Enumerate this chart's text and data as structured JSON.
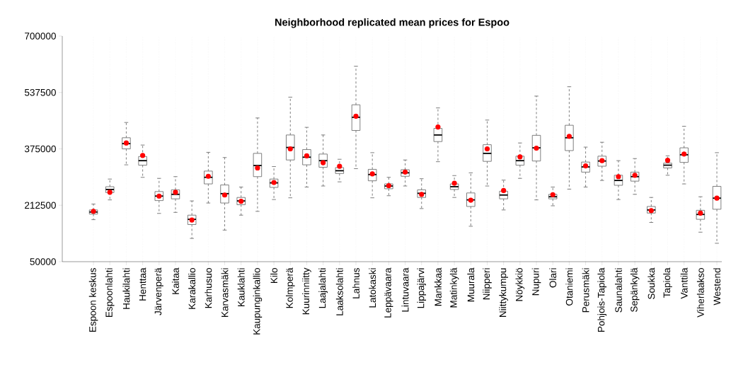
{
  "chart_data": {
    "type": "box",
    "title": "Neighborhood replicated mean prices for Espoo",
    "categories": [
      "Espoon keskus",
      "Espoonlahti",
      "Haukilahti",
      "Henttaa",
      "Järvenperä",
      "Kaitaa",
      "Karakallio",
      "Karhusuo",
      "Karvasmäki",
      "Kauklahti",
      "Kaupunginkallio",
      "Kilo",
      "Kolmperä",
      "Kuurinniitty",
      "Laajalahti",
      "Laaksolahti",
      "Lahnus",
      "Latokaski",
      "Leppävaara",
      "Lintuvaara",
      "Lippajärvi",
      "Mankkaa",
      "Matinkylä",
      "Muurala",
      "Niipperi",
      "Niittykumpu",
      "Nöykkiö",
      "Nupuri",
      "Olari",
      "Otaniemi",
      "Perusmäki",
      "Pohjois-Tapiola",
      "Saunalahti",
      "Sepänkylä",
      "Soukka",
      "Tapiola",
      "Vanttila",
      "Viherlaakso",
      "Westend"
    ],
    "boxes": [
      {
        "low": 171000,
        "q1": 187000,
        "median": 193000,
        "q3": 199000,
        "high": 216000,
        "mean": 195000
      },
      {
        "low": 228000,
        "q1": 249000,
        "median": 258000,
        "q3": 266000,
        "high": 288000,
        "mean": 250000
      },
      {
        "low": 329000,
        "q1": 375000,
        "median": 390000,
        "q3": 407000,
        "high": 451000,
        "mean": 392000
      },
      {
        "low": 293000,
        "q1": 328000,
        "median": 341000,
        "q3": 353000,
        "high": 386000,
        "mean": 356000
      },
      {
        "low": 189000,
        "q1": 226000,
        "median": 239000,
        "q3": 252000,
        "high": 290000,
        "mean": 239000
      },
      {
        "low": 192000,
        "q1": 231000,
        "median": 244000,
        "q3": 257000,
        "high": 295000,
        "mean": 250000
      },
      {
        "low": 117000,
        "q1": 157000,
        "median": 172000,
        "q3": 184000,
        "high": 225000,
        "mean": 170000
      },
      {
        "low": 219000,
        "q1": 274000,
        "median": 293000,
        "q3": 311000,
        "high": 365000,
        "mean": 296000
      },
      {
        "low": 141000,
        "q1": 219000,
        "median": 246000,
        "q3": 271000,
        "high": 350000,
        "mean": 242000
      },
      {
        "low": 184000,
        "q1": 214000,
        "median": 225000,
        "q3": 235000,
        "high": 265000,
        "mean": 224000
      },
      {
        "low": 195000,
        "q1": 295000,
        "median": 327000,
        "q3": 362000,
        "high": 464000,
        "mean": 320000
      },
      {
        "low": 229000,
        "q1": 264000,
        "median": 277000,
        "q3": 288000,
        "high": 324000,
        "mean": 278000
      },
      {
        "low": 234000,
        "q1": 343000,
        "median": 379000,
        "q3": 415000,
        "high": 524000,
        "mean": 375000
      },
      {
        "low": 265000,
        "q1": 329000,
        "median": 351000,
        "q3": 373000,
        "high": 437000,
        "mean": 355000
      },
      {
        "low": 268000,
        "q1": 322000,
        "median": 341000,
        "q3": 360000,
        "high": 415000,
        "mean": 335000
      },
      {
        "low": 280000,
        "q1": 304000,
        "median": 312000,
        "q3": 321000,
        "high": 345000,
        "mean": 325000
      },
      {
        "low": 318000,
        "q1": 428000,
        "median": 466000,
        "q3": 502000,
        "high": 613000,
        "mean": 469000
      },
      {
        "low": 234000,
        "q1": 283000,
        "median": 301000,
        "q3": 316000,
        "high": 364000,
        "mean": 303000
      },
      {
        "low": 240000,
        "q1": 260000,
        "median": 268000,
        "q3": 274000,
        "high": 293000,
        "mean": 269000
      },
      {
        "low": 268000,
        "q1": 296000,
        "median": 306000,
        "q3": 315000,
        "high": 343000,
        "mean": 308000
      },
      {
        "low": 203000,
        "q1": 235000,
        "median": 247000,
        "q3": 257000,
        "high": 289000,
        "mean": 244000
      },
      {
        "low": 338000,
        "q1": 396000,
        "median": 415000,
        "q3": 434000,
        "high": 493000,
        "mean": 438000
      },
      {
        "low": 235000,
        "q1": 258000,
        "median": 266000,
        "q3": 274000,
        "high": 298000,
        "mean": 276000
      },
      {
        "low": 152000,
        "q1": 209000,
        "median": 228000,
        "q3": 248000,
        "high": 306000,
        "mean": 227000
      },
      {
        "low": 268000,
        "q1": 339000,
        "median": 362000,
        "q3": 387000,
        "high": 458000,
        "mean": 375000
      },
      {
        "low": 199000,
        "q1": 231000,
        "median": 242000,
        "q3": 253000,
        "high": 285000,
        "mean": 255000
      },
      {
        "low": 290000,
        "q1": 328000,
        "median": 341000,
        "q3": 354000,
        "high": 392000,
        "mean": 352000
      },
      {
        "low": 228000,
        "q1": 340000,
        "median": 378000,
        "q3": 414000,
        "high": 527000,
        "mean": 377000
      },
      {
        "low": 211000,
        "q1": 231000,
        "median": 237000,
        "q3": 244000,
        "high": 265000,
        "mean": 243000
      },
      {
        "low": 259000,
        "q1": 370000,
        "median": 407000,
        "q3": 443000,
        "high": 554000,
        "mean": 411000
      },
      {
        "low": 265000,
        "q1": 308000,
        "median": 323000,
        "q3": 337000,
        "high": 380000,
        "mean": 326000
      },
      {
        "low": 284000,
        "q1": 325000,
        "median": 340000,
        "q3": 354000,
        "high": 394000,
        "mean": 341000
      },
      {
        "low": 229000,
        "q1": 270000,
        "median": 284000,
        "q3": 299000,
        "high": 341000,
        "mean": 295000
      },
      {
        "low": 244000,
        "q1": 282000,
        "median": 295000,
        "q3": 308000,
        "high": 347000,
        "mean": 299000
      },
      {
        "low": 163000,
        "q1": 190000,
        "median": 199000,
        "q3": 209000,
        "high": 235000,
        "mean": 197000
      },
      {
        "low": 299000,
        "q1": 320000,
        "median": 328000,
        "q3": 334000,
        "high": 355000,
        "mean": 342000
      },
      {
        "low": 274000,
        "q1": 336000,
        "median": 358000,
        "q3": 378000,
        "high": 440000,
        "mean": 360000
      },
      {
        "low": 135000,
        "q1": 172000,
        "median": 186000,
        "q3": 198000,
        "high": 237000,
        "mean": 190000
      },
      {
        "low": 103000,
        "q1": 201000,
        "median": 233000,
        "q3": 267000,
        "high": 364000,
        "mean": 233000
      }
    ],
    "ylim": [
      50000,
      700000
    ],
    "yticks": [
      50000,
      212500,
      375000,
      537500,
      700000
    ],
    "grid": "x"
  }
}
